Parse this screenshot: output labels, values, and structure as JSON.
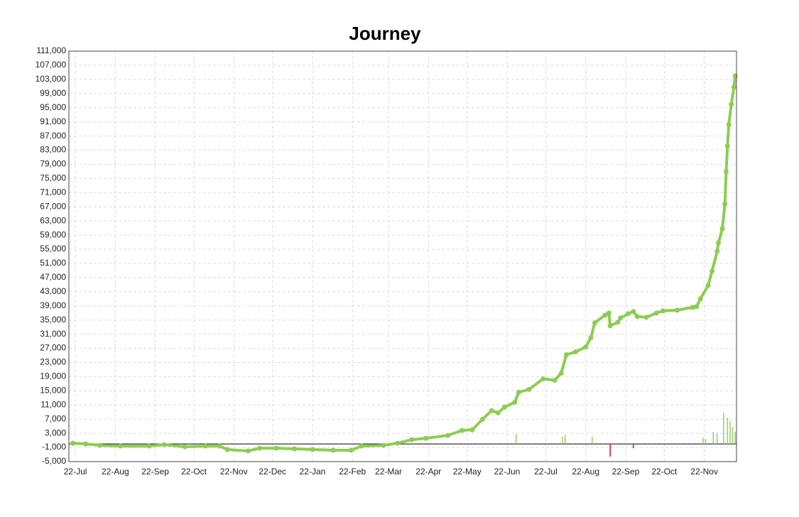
{
  "chart_data": {
    "type": "line",
    "title": "Journey",
    "grid": true,
    "xlim": [
      -5,
      513
    ],
    "xticks": [
      {
        "value": 0,
        "label": "22-Jul"
      },
      {
        "value": 31,
        "label": "22-Aug"
      },
      {
        "value": 62,
        "label": "22-Sep"
      },
      {
        "value": 92,
        "label": "22-Oct"
      },
      {
        "value": 123,
        "label": "22-Nov"
      },
      {
        "value": 153,
        "label": "22-Dec"
      },
      {
        "value": 184,
        "label": "22-Jan"
      },
      {
        "value": 215,
        "label": "22-Feb"
      },
      {
        "value": 243,
        "label": "22-Mar"
      },
      {
        "value": 274,
        "label": "22-Apr"
      },
      {
        "value": 304,
        "label": "22-May"
      },
      {
        "value": 335,
        "label": "22-Jun"
      },
      {
        "value": 365,
        "label": "22-Jul"
      },
      {
        "value": 396,
        "label": "22-Aug"
      },
      {
        "value": 427,
        "label": "22-Sep"
      },
      {
        "value": 457,
        "label": "22-Oct"
      },
      {
        "value": 488,
        "label": "22-Nov"
      }
    ],
    "ylim": [
      -5000,
      111000
    ],
    "yticks": [
      {
        "value": -5000,
        "label": "-5,000"
      },
      {
        "value": -1000,
        "label": "-1,000"
      },
      {
        "value": 3000,
        "label": "3,000"
      },
      {
        "value": 7000,
        "label": "7,000"
      },
      {
        "value": 11000,
        "label": "11,000"
      },
      {
        "value": 15000,
        "label": "15,000"
      },
      {
        "value": 19000,
        "label": "19,000"
      },
      {
        "value": 23000,
        "label": "23,000"
      },
      {
        "value": 27000,
        "label": "27,000"
      },
      {
        "value": 31000,
        "label": "31,000"
      },
      {
        "value": 35000,
        "label": "35,000"
      },
      {
        "value": 39000,
        "label": "39,000"
      },
      {
        "value": 43000,
        "label": "43,000"
      },
      {
        "value": 47000,
        "label": "47,000"
      },
      {
        "value": 51000,
        "label": "51,000"
      },
      {
        "value": 55000,
        "label": "55,000"
      },
      {
        "value": 59000,
        "label": "59,000"
      },
      {
        "value": 63000,
        "label": "63,000"
      },
      {
        "value": 67000,
        "label": "67,000"
      },
      {
        "value": 71000,
        "label": "71,000"
      },
      {
        "value": 75000,
        "label": "75,000"
      },
      {
        "value": 79000,
        "label": "79,000"
      },
      {
        "value": 83000,
        "label": "83,000"
      },
      {
        "value": 87000,
        "label": "87,000"
      },
      {
        "value": 91000,
        "label": "91,000"
      },
      {
        "value": 95000,
        "label": "95,000"
      },
      {
        "value": 99000,
        "label": "99,000"
      },
      {
        "value": 103000,
        "label": "103,000"
      },
      {
        "value": 107000,
        "label": "107,000"
      },
      {
        "value": 111000,
        "label": "111,000"
      }
    ],
    "series": [
      {
        "color": "#8dcc52",
        "x": [
          -2,
          8,
          19,
          35,
          57,
          69,
          85,
          101,
          112,
          118,
          134,
          143,
          156,
          170,
          184,
          200,
          214,
          222,
          239,
          250,
          261,
          272,
          289,
          300,
          308,
          316,
          323,
          328,
          333,
          341,
          344,
          352,
          363,
          372,
          377,
          381,
          388,
          396,
          400,
          403,
          411,
          414,
          415,
          421,
          423,
          429,
          433,
          436,
          443,
          451,
          456,
          467,
          479,
          482,
          485,
          491,
          494,
          498,
          499,
          502,
          504,
          505,
          506,
          507,
          509,
          511,
          512
        ],
        "values": [
          200,
          0,
          -400,
          -600,
          -600,
          -200,
          -800,
          -600,
          -600,
          -1600,
          -2000,
          -1200,
          -1200,
          -1400,
          -1600,
          -1800,
          -1800,
          -600,
          -400,
          200,
          1200,
          1600,
          2400,
          3800,
          4000,
          7000,
          9400,
          8800,
          10400,
          11800,
          14600,
          15400,
          18400,
          18000,
          20000,
          25200,
          26000,
          27400,
          30000,
          34200,
          36400,
          37000,
          33400,
          34400,
          35600,
          36800,
          37400,
          36000,
          35800,
          37000,
          37600,
          37800,
          38600,
          38800,
          41000,
          44800,
          48800,
          54400,
          56800,
          60800,
          67800,
          77000,
          84200,
          90200,
          96000,
          100800,
          104000
        ]
      }
    ],
    "bars": {
      "positive_color": "#9ccf70",
      "negative_color": "#cc2222",
      "x": [
        342,
        378,
        380,
        401,
        415,
        433,
        487,
        489,
        495,
        498,
        503,
        506,
        508,
        510,
        512
      ],
      "values": [
        2800,
        2000,
        2600,
        2000,
        -3600,
        -1200,
        1800,
        1400,
        3400,
        3000,
        8800,
        7400,
        6400,
        4800,
        3400
      ]
    }
  }
}
